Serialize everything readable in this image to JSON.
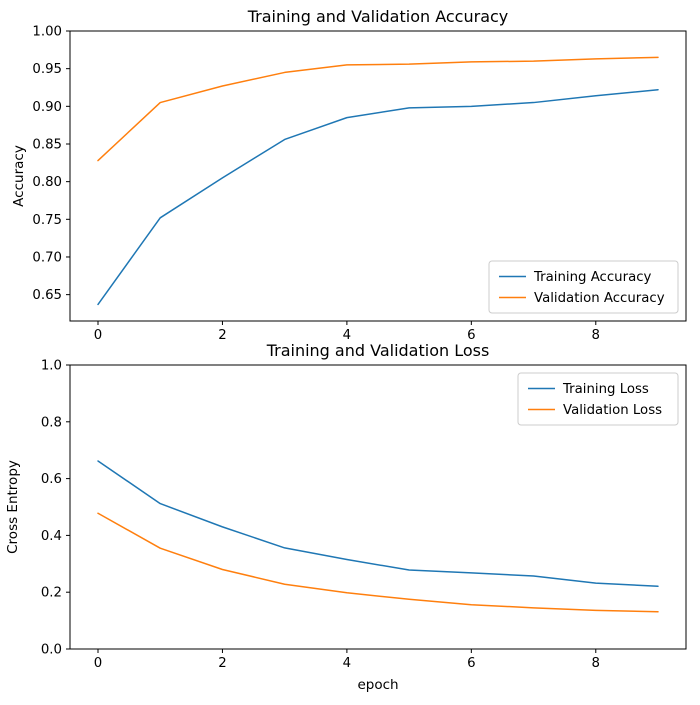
{
  "figure": {
    "background": "#ffffff"
  },
  "chart_data": [
    {
      "type": "line",
      "title": "Training and Validation Accuracy",
      "xlabel": "",
      "ylabel": "Accuracy",
      "x": [
        0,
        1,
        2,
        3,
        4,
        5,
        6,
        7,
        8,
        9
      ],
      "series": [
        {
          "name": "Training Accuracy",
          "color": "#1f77b4",
          "values": [
            0.637,
            0.752,
            0.805,
            0.856,
            0.885,
            0.898,
            0.9,
            0.905,
            0.914,
            0.922
          ]
        },
        {
          "name": "Validation Accuracy",
          "color": "#ff7f0e",
          "values": [
            0.828,
            0.905,
            0.927,
            0.945,
            0.955,
            0.956,
            0.959,
            0.96,
            0.963,
            0.965
          ]
        }
      ],
      "xlim": [
        -0.45,
        9.45
      ],
      "ylim": [
        0.615,
        1.0
      ],
      "xticks": [
        0,
        2,
        4,
        6,
        8
      ],
      "xtick_labels": [
        "0",
        "2",
        "4",
        "6",
        "8"
      ],
      "yticks": [
        0.65,
        0.7,
        0.75,
        0.8,
        0.85,
        0.9,
        0.95,
        1.0
      ],
      "ytick_labels": [
        "0.65",
        "0.70",
        "0.75",
        "0.80",
        "0.85",
        "0.90",
        "0.95",
        "1.00"
      ],
      "grid": false,
      "legend": {
        "position": "lower right"
      }
    },
    {
      "type": "line",
      "title": "Training and Validation Loss",
      "xlabel": "epoch",
      "ylabel": "Cross Entropy",
      "x": [
        0,
        1,
        2,
        3,
        4,
        5,
        6,
        7,
        8,
        9
      ],
      "series": [
        {
          "name": "Training Loss",
          "color": "#1f77b4",
          "values": [
            0.662,
            0.512,
            0.43,
            0.356,
            0.315,
            0.278,
            0.268,
            0.257,
            0.232,
            0.221
          ]
        },
        {
          "name": "Validation Loss",
          "color": "#ff7f0e",
          "values": [
            0.478,
            0.355,
            0.28,
            0.228,
            0.198,
            0.175,
            0.156,
            0.145,
            0.136,
            0.131
          ]
        }
      ],
      "xlim": [
        -0.45,
        9.45
      ],
      "ylim": [
        0.0,
        1.0
      ],
      "xticks": [
        0,
        2,
        4,
        6,
        8
      ],
      "xtick_labels": [
        "0",
        "2",
        "4",
        "6",
        "8"
      ],
      "yticks": [
        0.0,
        0.2,
        0.4,
        0.6,
        0.8,
        1.0
      ],
      "ytick_labels": [
        "0.0",
        "0.2",
        "0.4",
        "0.6",
        "0.8",
        "1.0"
      ],
      "grid": false,
      "legend": {
        "position": "upper right"
      }
    }
  ],
  "style": {
    "axes_edge_color": "#000000",
    "legend_edge_color": "#cccccc",
    "legend_fill": "#ffffff",
    "line_width": 1.5
  }
}
